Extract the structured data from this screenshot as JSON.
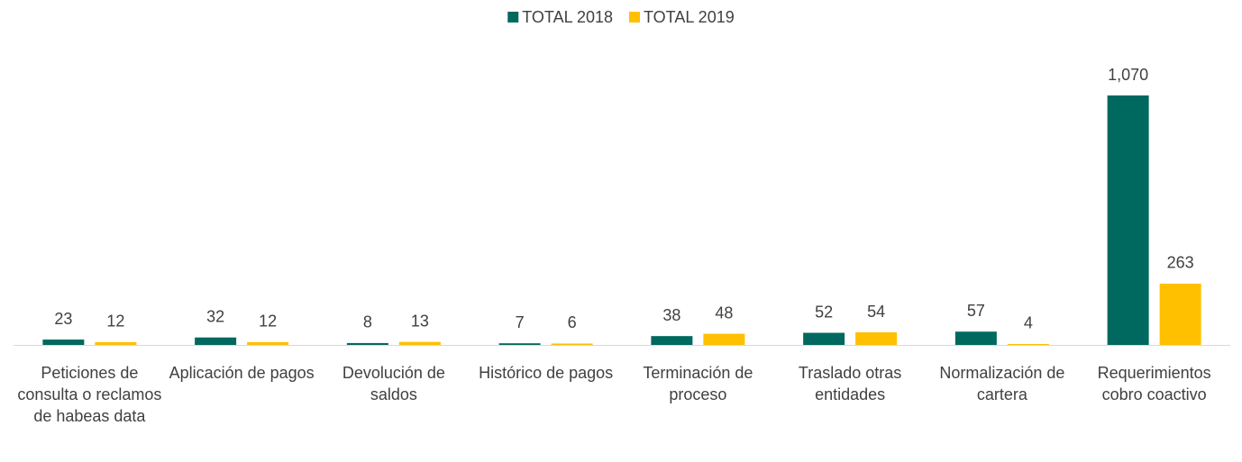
{
  "chart_data": {
    "type": "bar",
    "categories": [
      "Peticiones de consulta o reclamos de habeas data",
      "Aplicación de pagos",
      "Devolución de saldos",
      "Histórico de pagos",
      "Terminación de proceso",
      "Traslado otras entidades",
      "Normalización de cartera",
      "Requerimientos cobro coactivo"
    ],
    "series": [
      {
        "name": "TOTAL 2018",
        "color": "#00695f",
        "values": [
          23,
          32,
          8,
          7,
          38,
          52,
          57,
          1070
        ],
        "value_labels": [
          "23",
          "32",
          "8",
          "7",
          "38",
          "52",
          "57",
          "1,070"
        ]
      },
      {
        "name": "TOTAL 2019",
        "color": "#ffc000",
        "values": [
          12,
          12,
          13,
          6,
          48,
          54,
          4,
          263
        ],
        "value_labels": [
          "12",
          "12",
          "13",
          "6",
          "48",
          "54",
          "4",
          "263"
        ]
      }
    ],
    "legend": "top"
  }
}
